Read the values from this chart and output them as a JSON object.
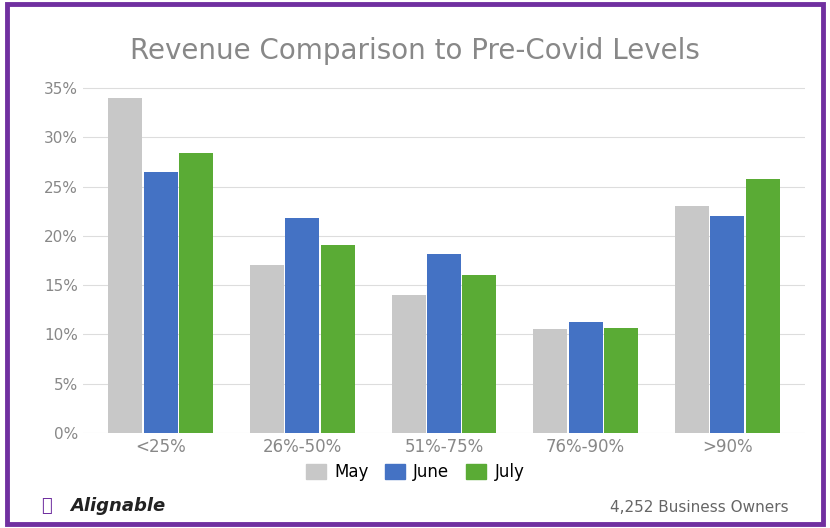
{
  "title": "Revenue Comparison to Pre-Covid Levels",
  "categories": [
    "<25%",
    "26%-50%",
    "51%-75%",
    "76%-90%",
    ">90%"
  ],
  "series": {
    "May": [
      0.34,
      0.17,
      0.14,
      0.105,
      0.23
    ],
    "June": [
      0.265,
      0.218,
      0.182,
      0.113,
      0.22
    ],
    "July": [
      0.284,
      0.191,
      0.16,
      0.106,
      0.258
    ]
  },
  "colors": {
    "May": "#c8c8c8",
    "June": "#4472c4",
    "July": "#5aab35"
  },
  "ylim": [
    0,
    0.375
  ],
  "yticks": [
    0.0,
    0.05,
    0.1,
    0.15,
    0.2,
    0.25,
    0.3,
    0.35
  ],
  "ytick_labels": [
    "0%",
    "5%",
    "10%",
    "15%",
    "20%",
    "25%",
    "30%",
    "35%"
  ],
  "background_color": "#ffffff",
  "border_color": "#7030a0",
  "footer_left": "Alignable",
  "footer_right": "4,252 Business Owners",
  "legend_labels": [
    "May",
    "June",
    "July"
  ],
  "title_color": "#888888",
  "tick_color": "#888888"
}
